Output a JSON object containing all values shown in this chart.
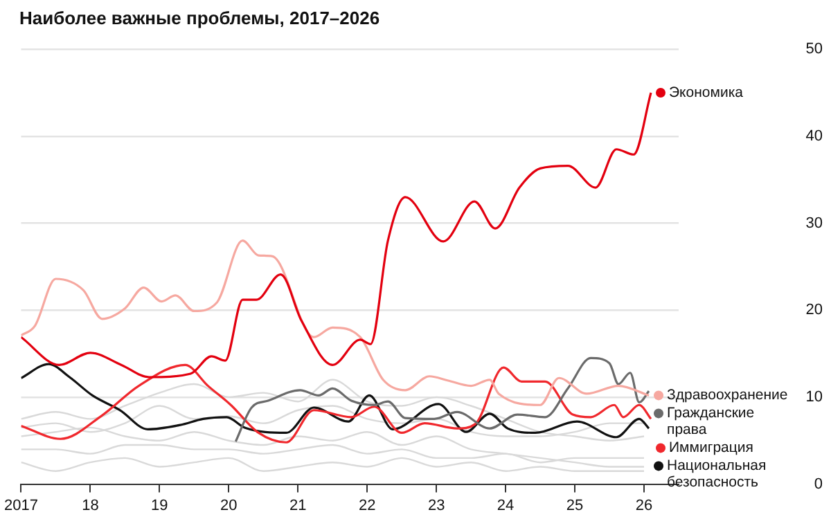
{
  "chart_data": {
    "type": "line",
    "title": "Наиболее важные проблемы, 2017–2026",
    "xlim": [
      2017,
      2026.5
    ],
    "xticks": [
      2017,
      {
        "value": 2018,
        "label": "18"
      },
      {
        "value": 2019,
        "label": "19"
      },
      {
        "value": 2020,
        "label": "20"
      },
      {
        "value": 2021,
        "label": "21"
      },
      {
        "value": 2022,
        "label": "22"
      },
      {
        "value": 2023,
        "label": "23"
      },
      {
        "value": 2024,
        "label": "24"
      },
      {
        "value": 2025,
        "label": "25"
      },
      {
        "value": 2026,
        "label": "26"
      }
    ],
    "ylim": [
      0,
      50
    ],
    "yticks": [
      0,
      10,
      20,
      30,
      40,
      50
    ],
    "grid": "y",
    "legend": "right",
    "series": [
      {
        "name": "Экономика",
        "color": "#e3000f",
        "x": [
          2017,
          2017.55,
          2018,
          2018.45,
          2018.85,
          2019.45,
          2019.75,
          2019.95,
          2020.2,
          2020.4,
          2020.75,
          2021.05,
          2021.5,
          2021.9,
          2022.05,
          2022.3,
          2022.55,
          2023.1,
          2023.55,
          2023.85,
          2024.2,
          2024.5,
          2024.9,
          2025.3,
          2025.6,
          2025.85,
          2026.1
        ],
        "values": [
          16.9,
          13.7,
          15.1,
          13.7,
          12.3,
          12.7,
          14.7,
          14.2,
          21.2,
          21.2,
          24.1,
          18.8,
          13.7,
          16.6,
          16.1,
          28,
          33,
          27.9,
          32.5,
          29.4,
          34.1,
          36.3,
          36.6,
          34.1,
          38.5,
          37.9,
          45
        ]
      },
      {
        "name": "Здравоохранение",
        "color": "#f6a8a0",
        "x": [
          2017,
          2017.2,
          2017.5,
          2017.9,
          2018.17,
          2018.5,
          2018.77,
          2019.03,
          2019.23,
          2019.5,
          2019.83,
          2020.2,
          2020.43,
          2020.63,
          2021.23,
          2021.5,
          2021.9,
          2022.23,
          2022.55,
          2022.9,
          2023.17,
          2023.5,
          2023.77,
          2023.9,
          2024.5,
          2024.77,
          2025.17,
          2025.63,
          2026.07
        ],
        "values": [
          17.1,
          18.2,
          23.6,
          22.3,
          19,
          20.2,
          22.6,
          21,
          21.7,
          19.9,
          20.9,
          28,
          26.3,
          26.2,
          16.9,
          18,
          16.9,
          12,
          10.8,
          12.4,
          11.9,
          11.3,
          12,
          10.4,
          9.1,
          12.2,
          10.4,
          11.3,
          10.2
        ]
      },
      {
        "name": "Гражданские права",
        "color": "#6b6b6b",
        "x": [
          2020.1,
          2020.33,
          2020.57,
          2021.03,
          2021.3,
          2021.5,
          2021.77,
          2022.1,
          2022.3,
          2022.55,
          2022.97,
          2023.3,
          2023.77,
          2024.17,
          2024.57,
          2024.9,
          2025.23,
          2025.5,
          2025.63,
          2025.8,
          2025.93,
          2026.07
        ],
        "values": [
          4.9,
          8.8,
          9.6,
          10.8,
          10.2,
          11,
          9.6,
          9.1,
          9.5,
          7.6,
          7.5,
          8.3,
          6.4,
          8,
          7.7,
          11,
          14.5,
          13.9,
          11.5,
          12.8,
          9.4,
          10.7
        ]
      },
      {
        "name": "Иммиграция",
        "color": "#f0282d",
        "x": [
          2017,
          2017.57,
          2018.17,
          2018.7,
          2019.37,
          2019.7,
          2020.03,
          2020.43,
          2020.83,
          2021.23,
          2021.77,
          2022.1,
          2022.5,
          2022.83,
          2023.3,
          2023.56,
          2023.97,
          2024.23,
          2024.57,
          2024.97,
          2025.23,
          2025.57,
          2025.7,
          2025.93,
          2026.1
        ],
        "values": [
          6.7,
          5.2,
          7.9,
          11.3,
          13.7,
          11.3,
          9.1,
          5.9,
          4.8,
          8.5,
          7.7,
          8.9,
          5.9,
          7,
          6.4,
          6.9,
          13.4,
          11.8,
          11.8,
          8,
          7.7,
          9.1,
          7.7,
          9.1,
          7.5
        ]
      },
      {
        "name": "Национальная безопасность",
        "color": "#111111",
        "x": [
          2017,
          2017.4,
          2017.7,
          2018.03,
          2018.43,
          2018.83,
          2019.3,
          2019.63,
          2019.97,
          2020.23,
          2020.83,
          2021.23,
          2021.73,
          2022.03,
          2022.37,
          2023.03,
          2023.43,
          2023.77,
          2024.03,
          2024.43,
          2025.03,
          2025.6,
          2025.93,
          2026.07
        ],
        "values": [
          12.2,
          13.8,
          12.3,
          10.2,
          8.5,
          6.3,
          6.8,
          7.5,
          7.7,
          6.5,
          5.9,
          8.8,
          7.2,
          10.2,
          6.3,
          9.2,
          6,
          8.1,
          6.4,
          5.9,
          7.2,
          5.4,
          7.5,
          6.4
        ]
      },
      {
        "color": "#d9d9d9",
        "x": [
          2017,
          2017.5,
          2018,
          2018.5,
          2019,
          2019.5,
          2020,
          2020.5,
          2021,
          2021.5,
          2022,
          2022.5,
          2023,
          2023.5,
          2024,
          2024.5,
          2025,
          2025.5,
          2026
        ],
        "values": [
          7.5,
          8.3,
          7.5,
          9,
          10.5,
          11.5,
          10,
          10.5,
          9.5,
          12,
          9.5,
          9,
          10,
          9,
          7.5,
          6,
          5.5,
          5,
          5.5
        ]
      },
      {
        "color": "#d9d9d9",
        "x": [
          2017,
          2017.5,
          2018,
          2018.5,
          2019,
          2019.5,
          2020,
          2020.5,
          2021,
          2021.5,
          2022,
          2022.5,
          2023,
          2023.5,
          2024,
          2024.5,
          2025,
          2025.5,
          2026
        ],
        "values": [
          6.5,
          7,
          6,
          7,
          9,
          7.5,
          7.8,
          7,
          8.5,
          9,
          7.5,
          7,
          7.5,
          6,
          5.5,
          5.5,
          6,
          7,
          7
        ]
      },
      {
        "color": "#d9d9d9",
        "x": [
          2017,
          2017.5,
          2018,
          2018.5,
          2019,
          2019.5,
          2020,
          2020.5,
          2021,
          2021.5,
          2022,
          2022.5,
          2023,
          2023.5,
          2024,
          2024.5,
          2025,
          2025.5,
          2026
        ],
        "values": [
          5.5,
          6,
          6.5,
          5.5,
          5,
          6,
          5,
          4.5,
          5.5,
          5,
          6,
          4.5,
          5.5,
          4,
          3.5,
          3,
          2.5,
          2,
          2
        ]
      },
      {
        "color": "#d9d9d9",
        "x": [
          2017,
          2017.5,
          2018,
          2018.5,
          2019,
          2019.5,
          2020,
          2020.5,
          2021,
          2021.5,
          2022,
          2022.5,
          2023,
          2023.5,
          2024,
          2024.5,
          2025,
          2025.5,
          2026
        ],
        "values": [
          4,
          4,
          3.5,
          4.5,
          4.5,
          4,
          4,
          3.5,
          4,
          4.5,
          3.5,
          4,
          3,
          3,
          3.5,
          2.5,
          3,
          3,
          3
        ]
      },
      {
        "color": "#d9d9d9",
        "x": [
          2017,
          2017.5,
          2018,
          2018.5,
          2019,
          2019.5,
          2020,
          2020.5,
          2021,
          2021.5,
          2022,
          2022.5,
          2023,
          2023.5,
          2024,
          2024.5,
          2025,
          2025.5,
          2026
        ],
        "values": [
          2.5,
          1.5,
          2.5,
          3,
          2,
          2.5,
          3,
          1.5,
          2,
          2.5,
          2,
          3,
          2,
          2.5,
          1.5,
          2,
          1.5,
          1.5,
          1.5
        ]
      }
    ]
  }
}
